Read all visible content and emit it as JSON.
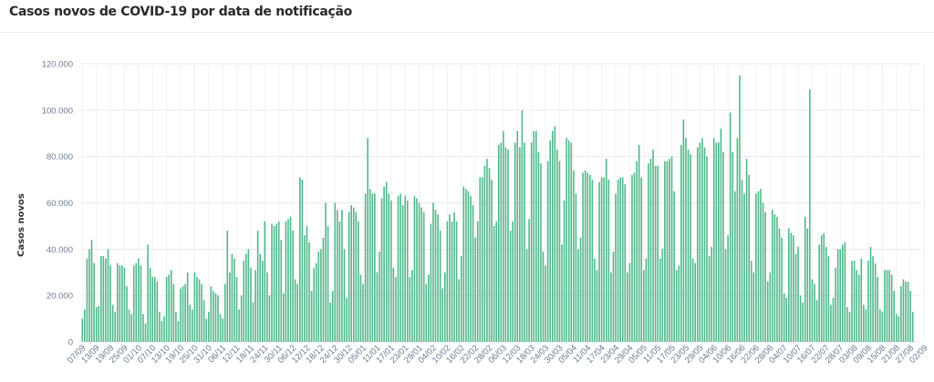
{
  "title": "Casos novos de COVID-19 por data de notificação",
  "colors": {
    "bar": "#4fb88a",
    "grid": "#e9e9e9",
    "text": "#6b7c93"
  },
  "chart_data": {
    "type": "bar",
    "title": "Casos novos de COVID-19 por data de notificação",
    "ylabel": "Casos novos",
    "xlabel": "",
    "ylim": [
      0,
      120000
    ],
    "yticks": [
      "0",
      "20.000",
      "40.000",
      "60.000",
      "80.000",
      "100.000",
      "120.000"
    ],
    "grid": true,
    "xtick_labels": [
      "07/09",
      "13/09",
      "19/09",
      "25/09",
      "01/10",
      "07/10",
      "13/10",
      "19/10",
      "25/10",
      "31/10",
      "06/11",
      "12/11",
      "18/11",
      "24/11",
      "30/11",
      "06/12",
      "12/12",
      "18/12",
      "24/12",
      "30/12",
      "05/01",
      "11/01",
      "17/01",
      "23/01",
      "29/01",
      "04/02",
      "10/02",
      "16/02",
      "22/02",
      "28/02",
      "06/03",
      "12/03",
      "18/03",
      "24/03",
      "30/03",
      "05/04",
      "11/04",
      "17/04",
      "23/04",
      "29/04",
      "05/05",
      "11/05",
      "17/05",
      "23/05",
      "29/05",
      "04/06",
      "10/06",
      "16/06",
      "22/06",
      "28/06",
      "04/07",
      "10/07",
      "16/07",
      "22/07",
      "28/07",
      "03/08",
      "09/08",
      "15/08",
      "21/08",
      "27/08",
      "02/09"
    ],
    "values": [
      10000,
      14000,
      36000,
      40000,
      44000,
      34000,
      15000,
      15500,
      37000,
      37000,
      36000,
      40000,
      33000,
      16000,
      13000,
      34000,
      33000,
      33000,
      32000,
      24000,
      14000,
      12000,
      33000,
      34000,
      36000,
      33000,
      12000,
      8000,
      42000,
      32000,
      28000,
      28000,
      26000,
      13000,
      9000,
      11000,
      28000,
      29000,
      31000,
      25000,
      13000,
      9000,
      23000,
      24000,
      25000,
      30000,
      16000,
      14000,
      30000,
      28000,
      27000,
      25000,
      18000,
      10000,
      13000,
      24000,
      22000,
      21000,
      20000,
      12000,
      10000,
      25000,
      48000,
      30000,
      38000,
      36000,
      28000,
      14000,
      20000,
      35000,
      38000,
      40000,
      32000,
      17000,
      31000,
      48000,
      38000,
      35000,
      52000,
      30000,
      20000,
      51000,
      50000,
      51000,
      52000,
      44000,
      21000,
      52000,
      53000,
      54000,
      48000,
      27000,
      25000,
      71000,
      70000,
      46000,
      50000,
      43000,
      22000,
      32000,
      34000,
      39000,
      40000,
      45000,
      60000,
      50000,
      17000,
      22000,
      60000,
      57000,
      52000,
      57000,
      40000,
      19000,
      56000,
      59000,
      58000,
      56000,
      52000,
      29000,
      25000,
      64000,
      88000,
      66000,
      64000,
      64000,
      30000,
      39000,
      62000,
      67000,
      69000,
      64000,
      61000,
      32000,
      28000,
      63000,
      64000,
      59000,
      63000,
      61000,
      28000,
      31000,
      63000,
      62000,
      60000,
      58000,
      56000,
      25000,
      29000,
      51000,
      60000,
      57000,
      55000,
      48000,
      23000,
      30000,
      52000,
      55000,
      52000,
      56000,
      52000,
      27000,
      37000,
      67000,
      66000,
      65000,
      63000,
      59000,
      45000,
      52000,
      71000,
      71000,
      76000,
      79000,
      75000,
      70000,
      50000,
      52000,
      85000,
      86000,
      91000,
      84000,
      83000,
      48000,
      52000,
      86000,
      91000,
      84000,
      100000,
      86000,
      40000,
      53000,
      86000,
      91000,
      91000,
      82000,
      77000,
      39000,
      33000,
      78000,
      87000,
      91000,
      93000,
      83000,
      78000,
      42000,
      61000,
      88000,
      87000,
      86000,
      74000,
      64000,
      40000,
      45000,
      73000,
      74000,
      73000,
      72000,
      70000,
      36000,
      31000,
      69000,
      71000,
      71000,
      79000,
      70000,
      30000,
      39000,
      64000,
      70000,
      71000,
      71000,
      68000,
      30000,
      34000,
      72000,
      73000,
      78000,
      85000,
      71000,
      31000,
      36000,
      77000,
      79000,
      83000,
      76000,
      76000,
      36000,
      40000,
      78000,
      78000,
      79000,
      80000,
      65000,
      31000,
      33000,
      85000,
      96000,
      88000,
      83000,
      81000,
      36000,
      34000,
      84000,
      86000,
      88000,
      84000,
      80000,
      37000,
      41000,
      88000,
      86000,
      86000,
      92000,
      82000,
      40000,
      46000,
      99000,
      82000,
      65000,
      88000,
      115000,
      70000,
      64000,
      79000,
      72000,
      35000,
      30000,
      64000,
      65000,
      66000,
      60000,
      56000,
      26000,
      30000,
      57000,
      55000,
      54000,
      49000,
      45000,
      21000,
      19000,
      49000,
      47000,
      46000,
      38000,
      41000,
      20000,
      17000,
      54000,
      49000,
      109000,
      27000,
      25000,
      18000,
      42000,
      46000,
      47000,
      41000,
      37000,
      16000,
      19000,
      32000,
      40000,
      40000,
      42000,
      43000,
      15000,
      13000,
      35000,
      35000,
      31000,
      29000,
      36000,
      16000,
      14000,
      35000,
      41000,
      37000,
      34000,
      28000,
      14000,
      13000,
      31000,
      31000,
      31000,
      29000,
      22000,
      12000,
      11000,
      24000,
      27000,
      26000,
      26000,
      22000,
      13000
    ]
  }
}
